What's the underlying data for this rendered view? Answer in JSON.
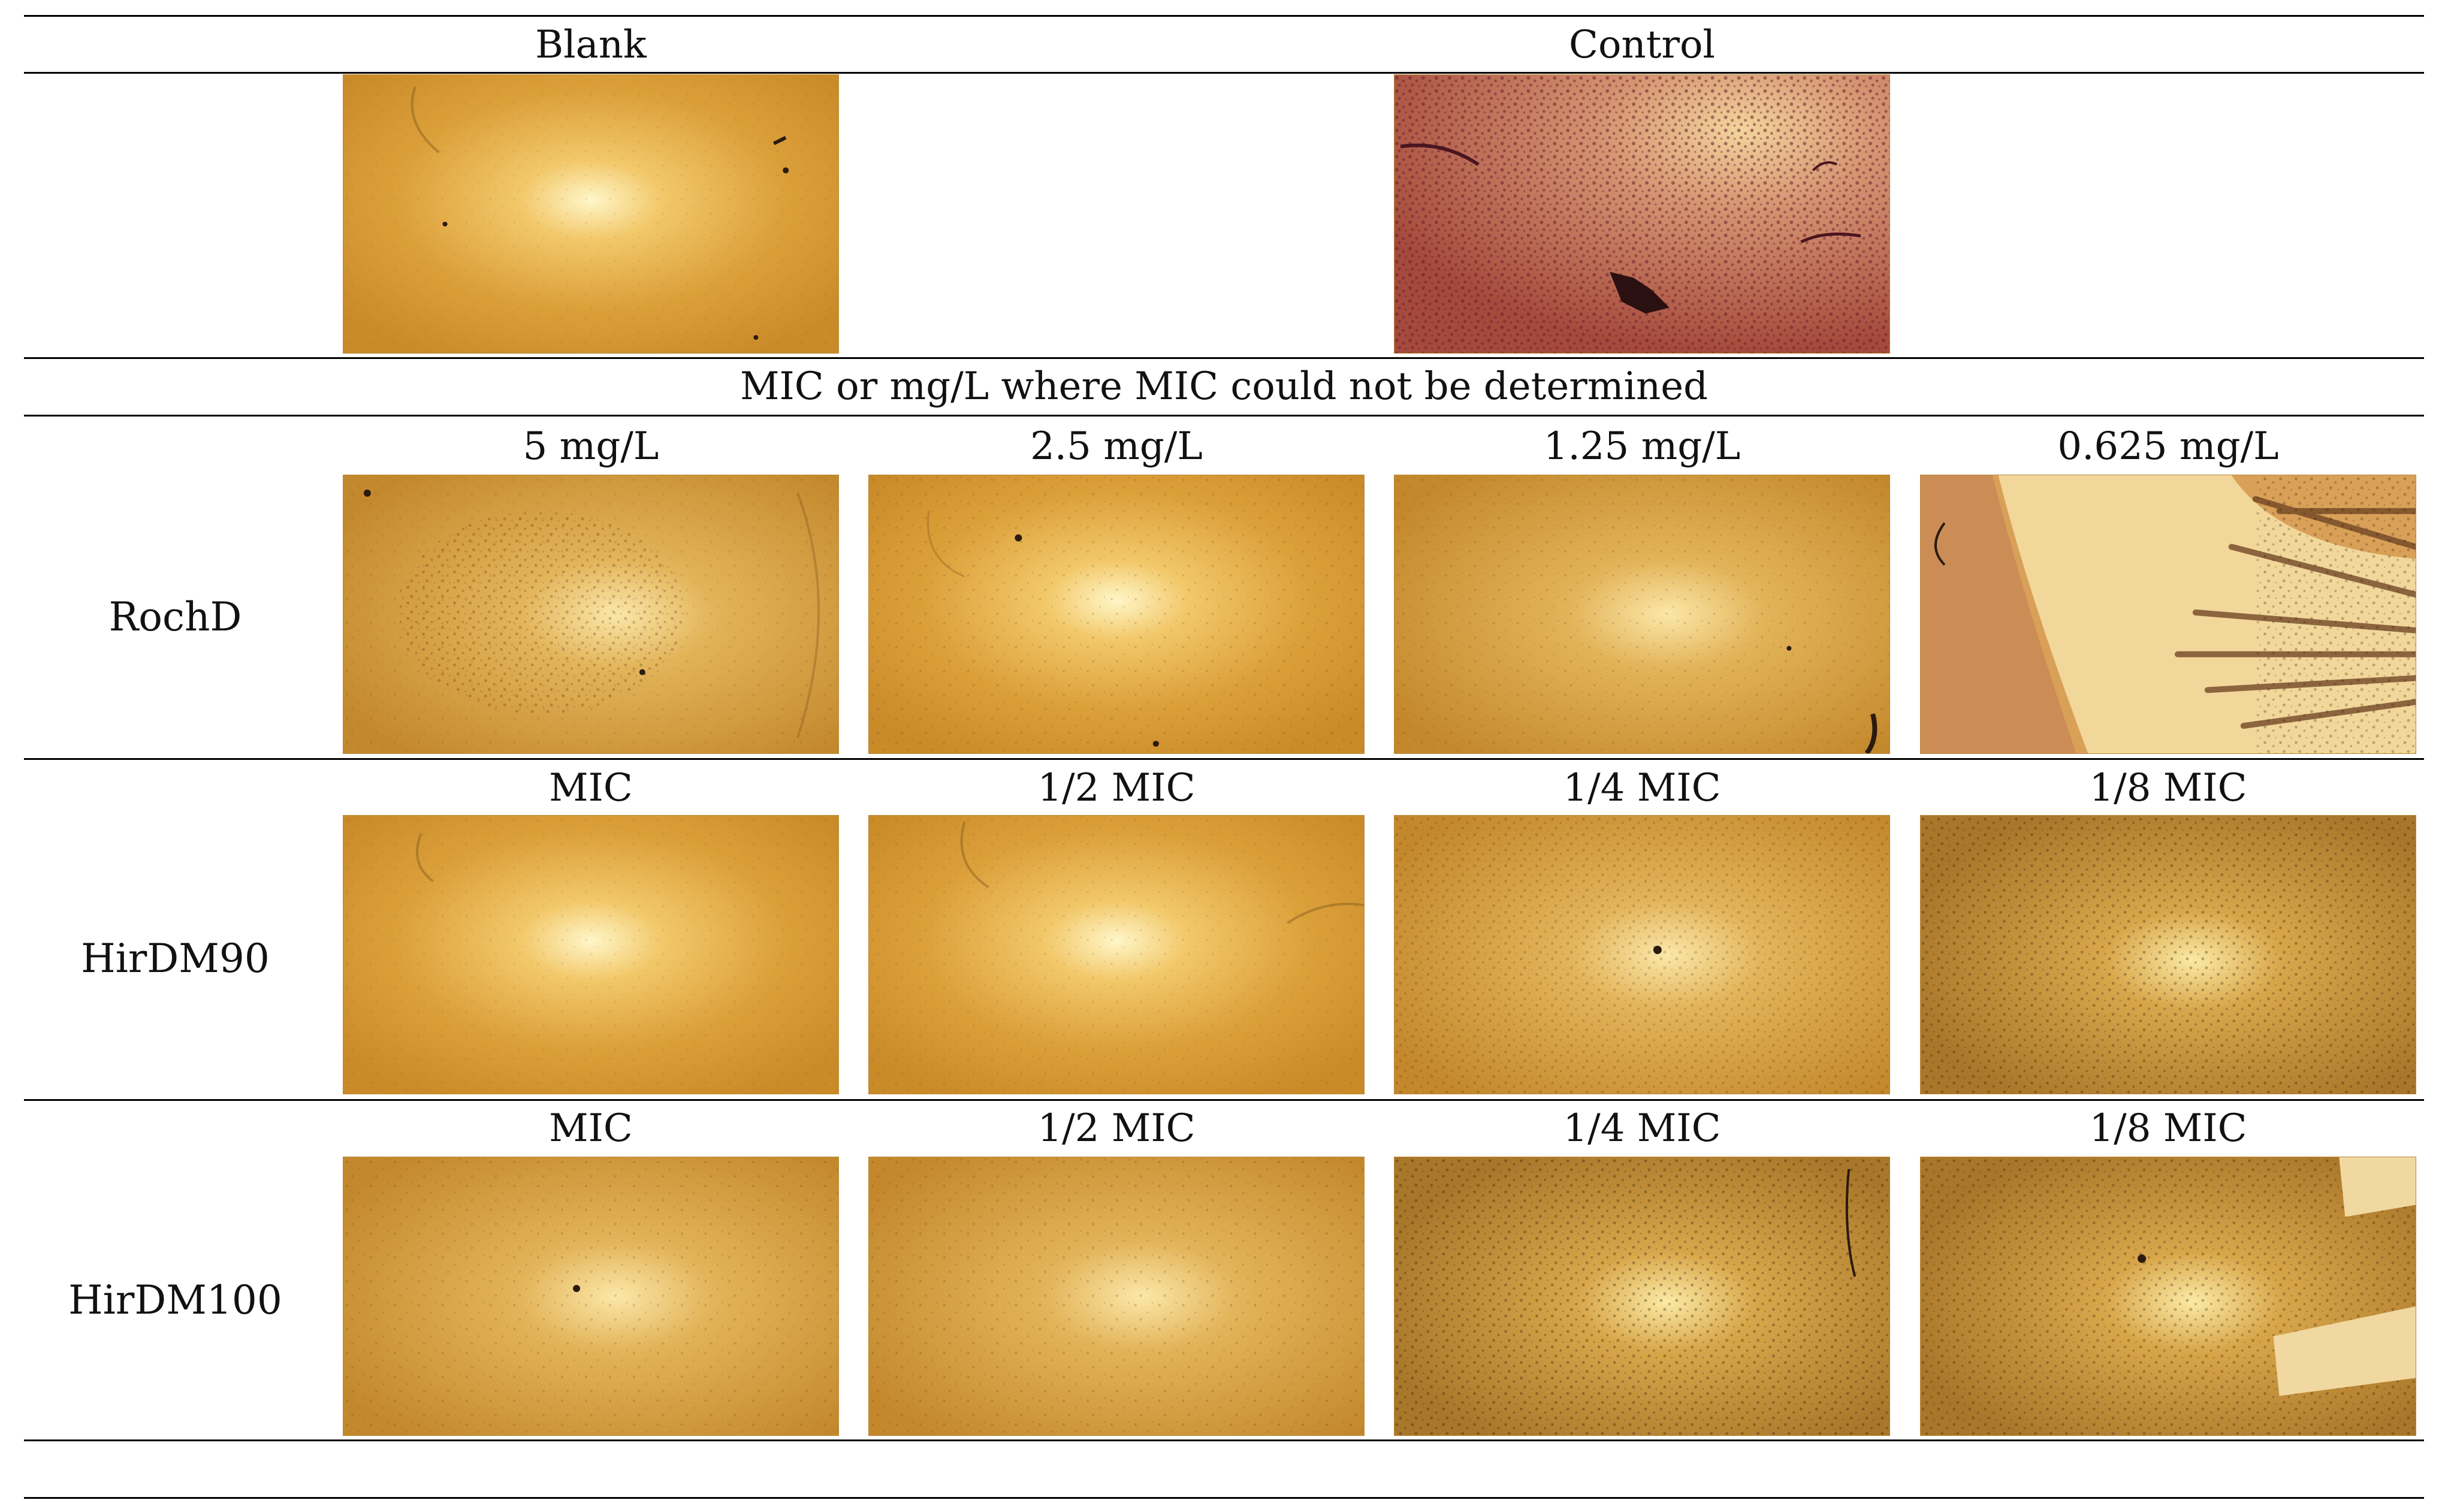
{
  "header": {
    "blank_label": "Blank",
    "control_label": "Control"
  },
  "section_title": "MIC or mg/L where MIC could not be determined",
  "rows": [
    {
      "name": "RochD",
      "columns": [
        "5 mg/L",
        "2.5 mg/L",
        "1.25 mg/L",
        "0.625 mg/L"
      ]
    },
    {
      "name": "HirDM90",
      "columns": [
        "MIC",
        "1/2 MIC",
        "1/4 MIC",
        "1/8 MIC"
      ]
    },
    {
      "name": "HirDM100",
      "columns": [
        "MIC",
        "1/2 MIC",
        "1/4 MIC",
        "1/8 MIC"
      ]
    }
  ],
  "colors": {
    "plate_base": "#d79a2e",
    "plate_center": "#fff0b0",
    "control_base": "#b85a3d",
    "dark_speck": "#2a1a10"
  }
}
